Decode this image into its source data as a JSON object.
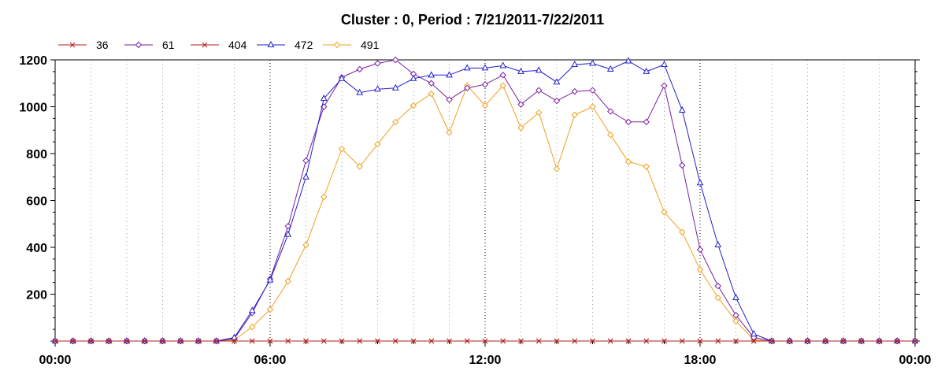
{
  "chart_data": {
    "type": "line",
    "title": "Cluster : 0, Period : 7/21/2011-7/22/2011",
    "xlabel": "",
    "ylabel": "",
    "x_ticks": [
      "00:00",
      "06:00",
      "12:00",
      "18:00",
      "00:00"
    ],
    "x_tick_hours": [
      0,
      6,
      12,
      18,
      24
    ],
    "x_range_hours": [
      0,
      24
    ],
    "y_ticks": [
      200,
      400,
      600,
      800,
      1000,
      1200
    ],
    "ylim": [
      0,
      1200
    ],
    "grid": "vertical dotted, every hour; stronger at 6-hour ticks",
    "legend_placement": "top-left",
    "x_hours": [
      0,
      0.5,
      1,
      1.5,
      2,
      2.5,
      3,
      3.5,
      4,
      4.5,
      5,
      5.5,
      6,
      6.5,
      7,
      7.5,
      8,
      8.5,
      9,
      9.5,
      10,
      10.5,
      11,
      11.5,
      12,
      12.5,
      13,
      13.5,
      14,
      14.5,
      15,
      15.5,
      16,
      16.5,
      17,
      17.5,
      18,
      18.5,
      19,
      19.5,
      20,
      20.5,
      21,
      21.5,
      22,
      22.5,
      23,
      23.5,
      24
    ],
    "series": [
      {
        "name": "36",
        "color": "#b22222",
        "marker": "x",
        "values": [
          0,
          0,
          0,
          0,
          0,
          0,
          0,
          0,
          0,
          0,
          0,
          0,
          0,
          0,
          0,
          0,
          0,
          0,
          0,
          0,
          0,
          0,
          0,
          0,
          0,
          0,
          0,
          0,
          0,
          0,
          0,
          0,
          0,
          0,
          0,
          0,
          0,
          0,
          0,
          0,
          0,
          0,
          0,
          0,
          0,
          0,
          0,
          0,
          0
        ]
      },
      {
        "name": "61",
        "color": "#7b1fa2",
        "marker": "diamond",
        "values": [
          0,
          0,
          0,
          0,
          0,
          0,
          0,
          0,
          0,
          0,
          10,
          120,
          265,
          490,
          770,
          1000,
          1125,
          1160,
          1185,
          1200,
          1140,
          1100,
          1030,
          1080,
          1095,
          1135,
          1010,
          1070,
          1025,
          1065,
          1070,
          980,
          935,
          935,
          1090,
          750,
          390,
          235,
          110,
          15,
          0,
          0,
          0,
          0,
          0,
          0,
          0,
          0,
          0
        ]
      },
      {
        "name": "404",
        "color": "#b22222",
        "marker": "x",
        "values": [
          0,
          0,
          0,
          0,
          0,
          0,
          0,
          0,
          0,
          0,
          0,
          0,
          0,
          0,
          0,
          0,
          0,
          0,
          0,
          0,
          0,
          0,
          0,
          0,
          0,
          0,
          0,
          0,
          0,
          0,
          0,
          0,
          0,
          0,
          0,
          0,
          0,
          0,
          0,
          0,
          0,
          0,
          0,
          0,
          0,
          0,
          0,
          0,
          0
        ]
      },
      {
        "name": "472",
        "color": "#1f1fcf",
        "marker": "triangle",
        "values": [
          0,
          0,
          0,
          0,
          0,
          0,
          0,
          0,
          0,
          0,
          15,
          130,
          260,
          455,
          700,
          1035,
          1120,
          1060,
          1075,
          1080,
          1120,
          1135,
          1135,
          1165,
          1165,
          1175,
          1150,
          1155,
          1105,
          1180,
          1185,
          1160,
          1195,
          1150,
          1180,
          985,
          675,
          410,
          185,
          30,
          0,
          0,
          0,
          0,
          0,
          0,
          0,
          0,
          0
        ]
      },
      {
        "name": "491",
        "color": "#f0a020",
        "marker": "diamond",
        "values": [
          0,
          0,
          0,
          0,
          0,
          0,
          0,
          0,
          0,
          0,
          5,
          60,
          135,
          255,
          410,
          615,
          820,
          745,
          840,
          935,
          1005,
          1055,
          890,
          1090,
          1005,
          1090,
          910,
          975,
          735,
          965,
          1000,
          880,
          765,
          745,
          550,
          465,
          305,
          185,
          85,
          5,
          0,
          0,
          0,
          0,
          0,
          0,
          0,
          0,
          0
        ]
      }
    ]
  }
}
